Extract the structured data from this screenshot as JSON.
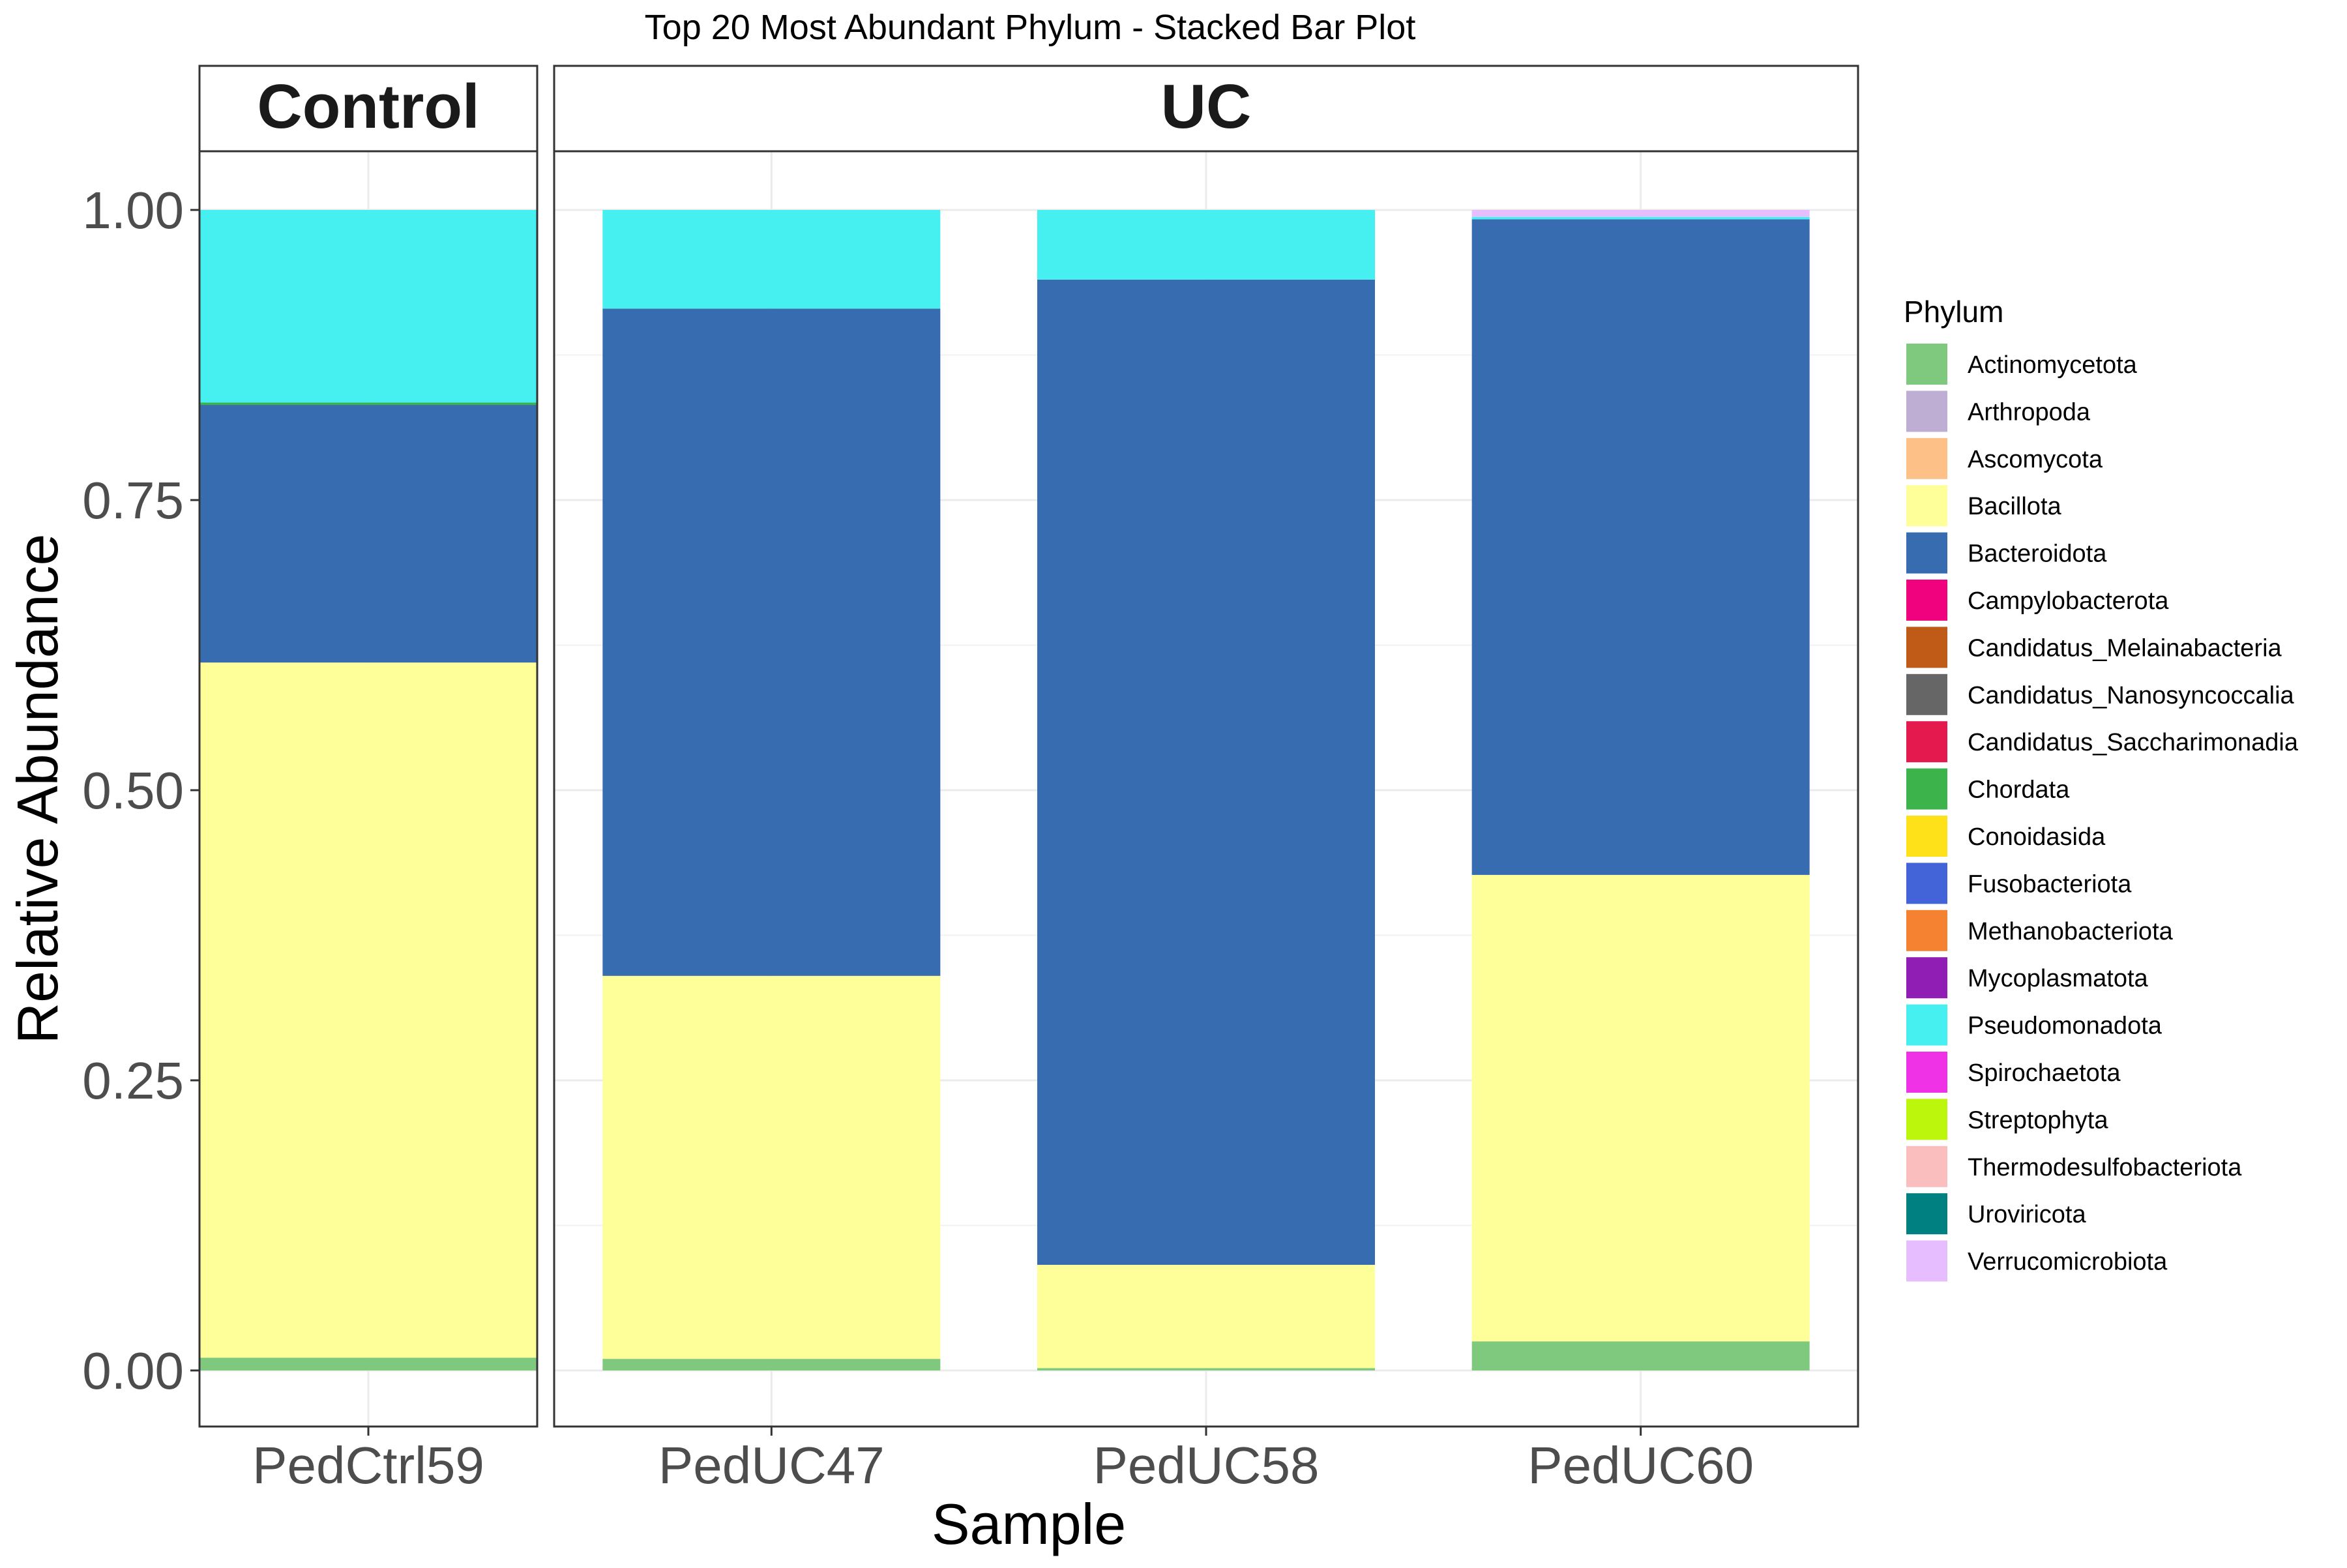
{
  "chart_data": {
    "type": "bar",
    "stacked": true,
    "title": "Top 20 Most Abundant Phylum - Stacked Bar Plot",
    "xlabel": "Sample",
    "ylabel": "Relative Abundance",
    "ylim": [
      0,
      1
    ],
    "y_ticks": [
      "0.00",
      "0.25",
      "0.50",
      "0.75",
      "1.00"
    ],
    "grid": true,
    "legend_position": "right",
    "legend_title": "Phylum",
    "facets": [
      {
        "label": "Control",
        "categories": [
          "PedCtrl59"
        ]
      },
      {
        "label": "UC",
        "categories": [
          "PedUC47",
          "PedUC58",
          "PedUC60"
        ]
      }
    ],
    "categories": [
      "PedCtrl59",
      "PedUC47",
      "PedUC58",
      "PedUC60"
    ],
    "series": [
      {
        "name": "Actinomycetota",
        "color": "#7FC97F",
        "values": [
          0.011,
          0.01,
          0.002,
          0.025
        ]
      },
      {
        "name": "Arthropoda",
        "color": "#BEAED4",
        "values": [
          0,
          0,
          0,
          0
        ]
      },
      {
        "name": "Ascomycota",
        "color": "#FDC086",
        "values": [
          0,
          0,
          0,
          0
        ]
      },
      {
        "name": "Bacillota",
        "color": "#FFFF99",
        "values": [
          0.599,
          0.33,
          0.089,
          0.402
        ]
      },
      {
        "name": "Bacteroidota",
        "color": "#386CB0",
        "values": [
          0.222,
          0.575,
          0.849,
          0.565
        ]
      },
      {
        "name": "Campylobacterota",
        "color": "#F0027F",
        "values": [
          0,
          0,
          0,
          0
        ]
      },
      {
        "name": "Candidatus_Melainabacteria",
        "color": "#BF5B17",
        "values": [
          0,
          0,
          0,
          0
        ]
      },
      {
        "name": "Candidatus_Nanosyncoccalia",
        "color": "#666666",
        "values": [
          0,
          0,
          0,
          0
        ]
      },
      {
        "name": "Candidatus_Saccharimonadia",
        "color": "#E41A4F",
        "values": [
          0,
          0,
          0,
          0
        ]
      },
      {
        "name": "Chordata",
        "color": "#3CB44B",
        "values": [
          0.002,
          0,
          0,
          0
        ]
      },
      {
        "name": "Conoidasida",
        "color": "#FFE119",
        "values": [
          0,
          0,
          0,
          0
        ]
      },
      {
        "name": "Fusobacteriota",
        "color": "#4363D8",
        "values": [
          0,
          0,
          0,
          0
        ]
      },
      {
        "name": "Methanobacteriota",
        "color": "#F58231",
        "values": [
          0,
          0,
          0,
          0
        ]
      },
      {
        "name": "Mycoplasmatota",
        "color": "#911EB4",
        "values": [
          0,
          0,
          0,
          0
        ]
      },
      {
        "name": "Pseudomonadota",
        "color": "#46F0F0",
        "values": [
          0.166,
          0.085,
          0.06,
          0.002
        ]
      },
      {
        "name": "Spirochaetota",
        "color": "#F032E6",
        "values": [
          0,
          0,
          0,
          0
        ]
      },
      {
        "name": "Streptophyta",
        "color": "#BCF60C",
        "values": [
          0,
          0,
          0,
          0
        ]
      },
      {
        "name": "Thermodesulfobacteriota",
        "color": "#FABEBE",
        "values": [
          0,
          0,
          0,
          0
        ]
      },
      {
        "name": "Uroviricota",
        "color": "#008080",
        "values": [
          0,
          0,
          0,
          0
        ]
      },
      {
        "name": "Verrucomicrobiota",
        "color": "#E6BEFF",
        "values": [
          0,
          0,
          0,
          0.006
        ]
      }
    ]
  }
}
